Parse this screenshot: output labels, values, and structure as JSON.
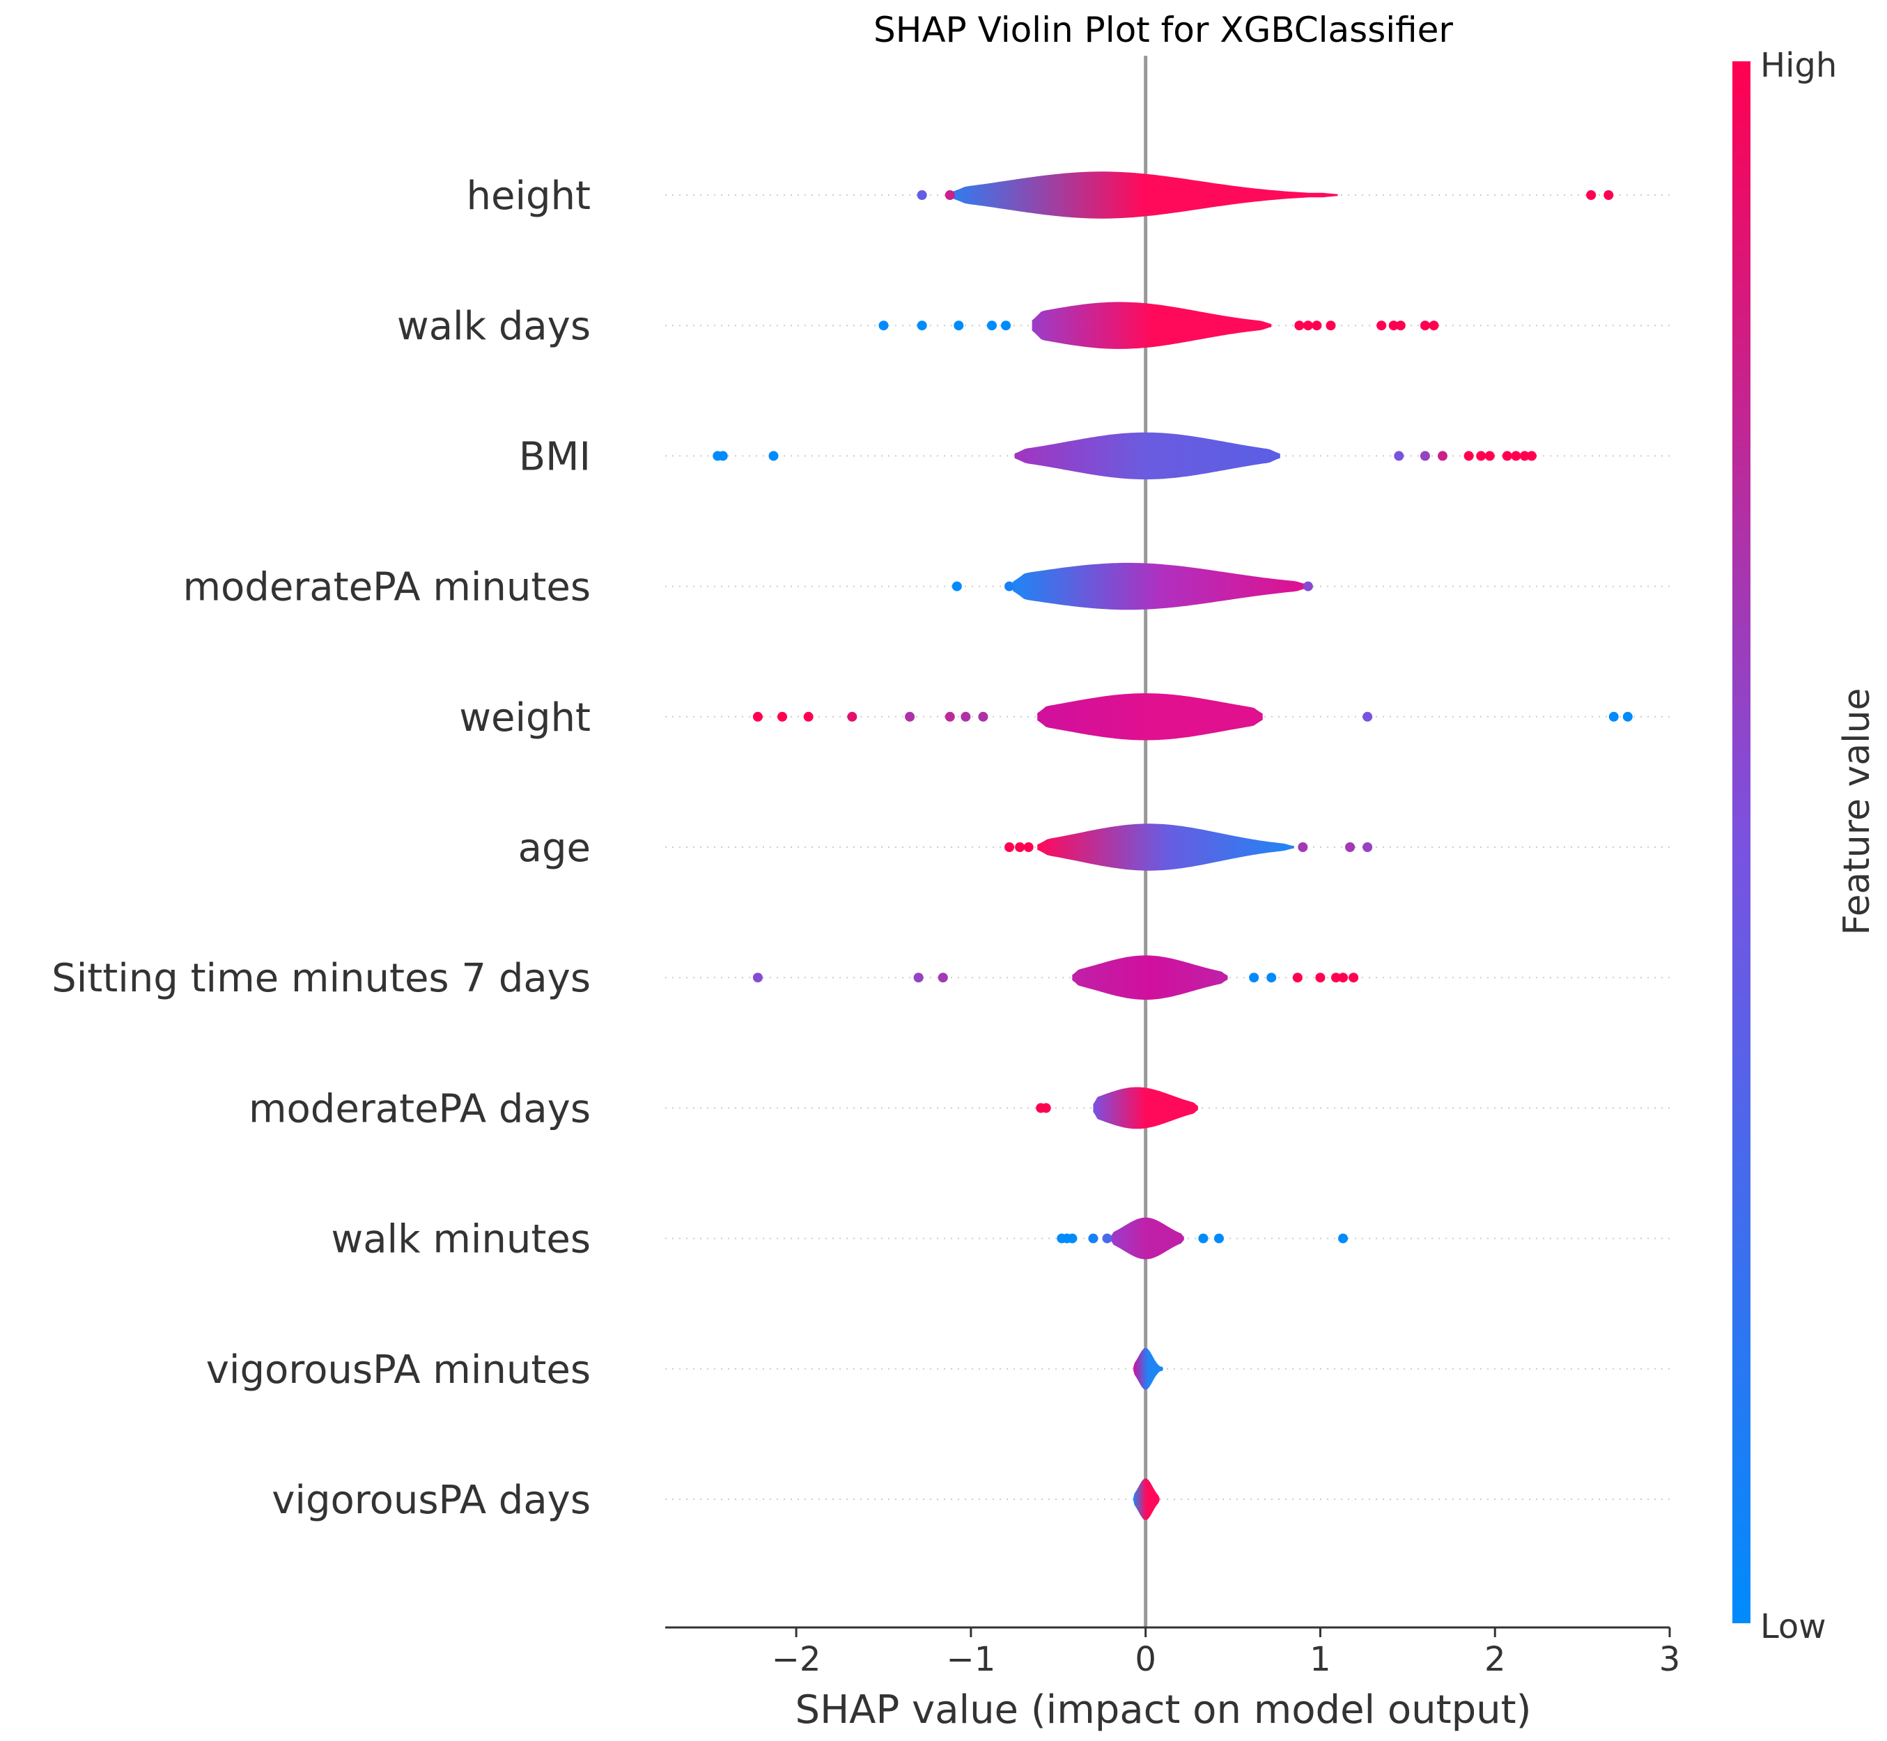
{
  "chart_data": {
    "type": "violin",
    "title": "SHAP Violin Plot for XGBClassifier",
    "xlabel": "SHAP value (impact on model output)",
    "xlim": [
      -2.75,
      3.0
    ],
    "xticks": [
      -2,
      -1,
      0,
      1,
      2,
      3
    ],
    "xtick_labels": [
      "−2",
      "−1",
      "0",
      "1",
      "2",
      "3"
    ],
    "colorbar": {
      "label": "Feature value",
      "high_label": "High",
      "low_label": "Low",
      "high_color": "#ff0051",
      "mid_color": "#7a52e0",
      "low_color": "#008bfb"
    },
    "features": [
      {
        "name": "height",
        "range": [
          -1.12,
          1.1
        ],
        "center": -0.25,
        "max_width": 0.36,
        "spread": 0.55,
        "colors": [
          "#2f7df2",
          "#ff0a5a",
          "#ff0a5a"
        ],
        "outliers": [
          {
            "x": -1.28,
            "v": 0.4
          },
          {
            "x": -1.12,
            "v": 0.8
          },
          {
            "x": 2.55,
            "v": 1.0
          },
          {
            "x": 2.65,
            "v": 1.0
          }
        ]
      },
      {
        "name": "walk days",
        "range": [
          -0.65,
          0.72
        ],
        "center": -0.15,
        "max_width": 0.36,
        "spread": 0.45,
        "colors": [
          "#9b3dc9",
          "#ff0a5a",
          "#ff0a5a"
        ],
        "outliers": [
          {
            "x": -1.5,
            "v": 0.0
          },
          {
            "x": -1.28,
            "v": 0.0
          },
          {
            "x": -1.07,
            "v": 0.0
          },
          {
            "x": -0.88,
            "v": 0.0
          },
          {
            "x": -0.8,
            "v": 0.0
          },
          {
            "x": 0.88,
            "v": 1.0
          },
          {
            "x": 0.93,
            "v": 1.0
          },
          {
            "x": 0.98,
            "v": 1.0
          },
          {
            "x": 1.06,
            "v": 1.0
          },
          {
            "x": 1.35,
            "v": 1.0
          },
          {
            "x": 1.42,
            "v": 1.0
          },
          {
            "x": 1.46,
            "v": 1.0
          },
          {
            "x": 1.6,
            "v": 1.0
          },
          {
            "x": 1.65,
            "v": 1.0
          }
        ]
      },
      {
        "name": "BMI",
        "range": [
          -0.75,
          0.77
        ],
        "center": 0.0,
        "max_width": 0.36,
        "spread": 0.45,
        "colors": [
          "#a235c0",
          "#6a5ce0",
          "#5a5ee4"
        ],
        "outliers": [
          {
            "x": -2.45,
            "v": 0.0
          },
          {
            "x": -2.42,
            "v": 0.0
          },
          {
            "x": -2.13,
            "v": 0.0
          },
          {
            "x": 1.45,
            "v": 0.5
          },
          {
            "x": 1.6,
            "v": 0.6
          },
          {
            "x": 1.7,
            "v": 0.8
          },
          {
            "x": 1.85,
            "v": 1.0
          },
          {
            "x": 1.92,
            "v": 1.0
          },
          {
            "x": 1.97,
            "v": 1.0
          },
          {
            "x": 2.07,
            "v": 1.0
          },
          {
            "x": 2.12,
            "v": 1.0
          },
          {
            "x": 2.17,
            "v": 1.0
          },
          {
            "x": 2.21,
            "v": 1.0
          }
        ]
      },
      {
        "name": "moderatePA minutes",
        "range": [
          -0.76,
          0.93
        ],
        "center": -0.1,
        "max_width": 0.36,
        "spread": 0.55,
        "colors": [
          "#1f85f5",
          "#b030c0",
          "#e0108f"
        ],
        "outliers": [
          {
            "x": -1.08,
            "v": 0.0
          },
          {
            "x": -0.78,
            "v": 0.1
          },
          {
            "x": 0.93,
            "v": 0.55
          }
        ]
      },
      {
        "name": "weight",
        "range": [
          -0.62,
          0.67
        ],
        "center": 0.0,
        "max_width": 0.36,
        "spread": 0.45,
        "colors": [
          "#d0109d",
          "#e0108f",
          "#e0108f"
        ],
        "outliers": [
          {
            "x": -2.22,
            "v": 1.0
          },
          {
            "x": -2.08,
            "v": 1.0
          },
          {
            "x": -1.93,
            "v": 1.0
          },
          {
            "x": -1.68,
            "v": 0.9
          },
          {
            "x": -1.35,
            "v": 0.7
          },
          {
            "x": -1.12,
            "v": 0.75
          },
          {
            "x": -1.03,
            "v": 0.7
          },
          {
            "x": -0.93,
            "v": 0.7
          },
          {
            "x": 1.27,
            "v": 0.5
          },
          {
            "x": 2.68,
            "v": 0.0
          },
          {
            "x": 2.76,
            "v": 0.0
          }
        ]
      },
      {
        "name": "age",
        "range": [
          -0.62,
          0.85
        ],
        "center": 0.02,
        "max_width": 0.36,
        "spread": 0.4,
        "colors": [
          "#ff0a5a",
          "#6a5ce0",
          "#1f85f5"
        ],
        "outliers": [
          {
            "x": -0.78,
            "v": 1.0
          },
          {
            "x": -0.72,
            "v": 1.0
          },
          {
            "x": -0.67,
            "v": 1.0
          },
          {
            "x": 0.9,
            "v": 0.65
          },
          {
            "x": 1.17,
            "v": 0.65
          },
          {
            "x": 1.27,
            "v": 0.6
          }
        ]
      },
      {
        "name": "Sitting time minutes 7 days",
        "range": [
          -0.42,
          0.47
        ],
        "center": 0.0,
        "max_width": 0.34,
        "spread": 0.27,
        "colors": [
          "#c020a8",
          "#d0109d",
          "#c020a8"
        ],
        "outliers": [
          {
            "x": -2.22,
            "v": 0.55
          },
          {
            "x": -1.3,
            "v": 0.6
          },
          {
            "x": -1.16,
            "v": 0.65
          },
          {
            "x": 0.62,
            "v": 0.0
          },
          {
            "x": 0.72,
            "v": 0.0
          },
          {
            "x": 0.87,
            "v": 1.0
          },
          {
            "x": 1.0,
            "v": 1.0
          },
          {
            "x": 1.09,
            "v": 1.0
          },
          {
            "x": 1.13,
            "v": 1.0
          },
          {
            "x": 1.19,
            "v": 1.0
          }
        ]
      },
      {
        "name": "moderatePA days",
        "range": [
          -0.3,
          0.3
        ],
        "center": -0.05,
        "max_width": 0.32,
        "spread": 0.2,
        "colors": [
          "#7a52e0",
          "#ff0a5a",
          "#ff0a5a"
        ],
        "outliers": [
          {
            "x": -0.6,
            "v": 1.0
          },
          {
            "x": -0.57,
            "v": 1.0
          }
        ]
      },
      {
        "name": "walk minutes",
        "range": [
          -0.2,
          0.22
        ],
        "center": 0.0,
        "max_width": 0.32,
        "spread": 0.12,
        "colors": [
          "#9b3dc9",
          "#c020a8",
          "#c020a8"
        ],
        "outliers": [
          {
            "x": -0.48,
            "v": 0.0
          },
          {
            "x": -0.45,
            "v": 0.0
          },
          {
            "x": -0.42,
            "v": 0.0
          },
          {
            "x": -0.3,
            "v": 0.1
          },
          {
            "x": -0.22,
            "v": 0.3
          },
          {
            "x": 0.33,
            "v": 0.0
          },
          {
            "x": 0.42,
            "v": 0.0
          },
          {
            "x": 1.13,
            "v": 0.0
          }
        ]
      },
      {
        "name": "vigorousPA minutes",
        "range": [
          -0.07,
          0.1
        ],
        "center": 0.0,
        "max_width": 0.32,
        "spread": 0.04,
        "colors": [
          "#d0109d",
          "#1f85f5",
          "#1f85f5"
        ],
        "outliers": []
      },
      {
        "name": "vigorousPA days",
        "range": [
          -0.07,
          0.08
        ],
        "center": 0.0,
        "max_width": 0.32,
        "spread": 0.04,
        "colors": [
          "#1f85f5",
          "#ff0a5a",
          "#ff0a5a"
        ],
        "outliers": []
      }
    ]
  }
}
